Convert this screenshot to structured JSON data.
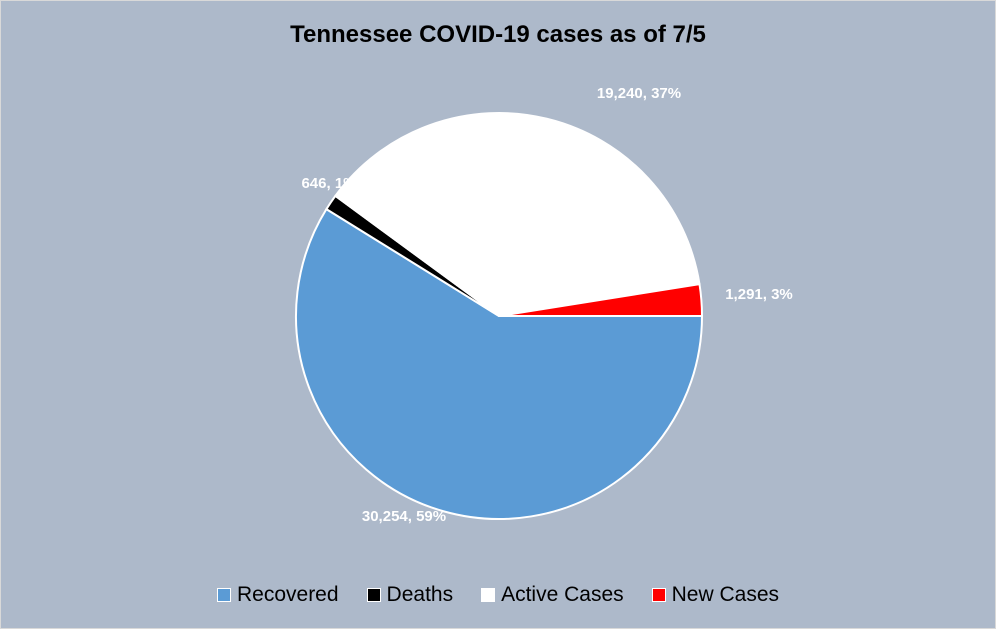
{
  "chart_data": {
    "type": "pie",
    "title": "Tennessee COVID-19 cases as of 7/5",
    "legend_position": "bottom",
    "slices": [
      {
        "name": "Recovered",
        "value": 30254,
        "label": "30,254, 59%",
        "color": "#5b9bd5"
      },
      {
        "name": "Deaths",
        "value": 646,
        "label": "646, 1%",
        "color": "#000000"
      },
      {
        "name": "Active Cases",
        "value": 19240,
        "label": "19,240, 37%",
        "color": "#ffffff"
      },
      {
        "name": "New Cases",
        "value": 1291,
        "label": "1,291, 3%",
        "color": "#ff0000"
      }
    ]
  }
}
